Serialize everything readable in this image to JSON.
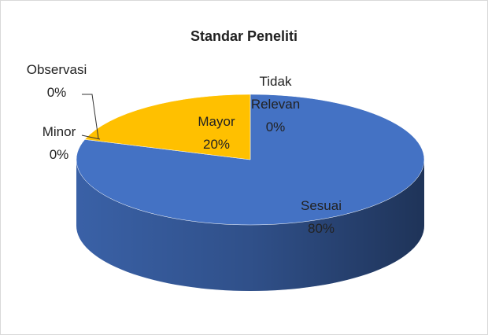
{
  "chart_data": {
    "type": "pie3d",
    "title": "Standar Peneliti",
    "categories": [
      "Sesuai",
      "Mayor",
      "Minor",
      "Observasi",
      "Tidak Relevan"
    ],
    "values": [
      80,
      20,
      0,
      0,
      0
    ],
    "value_labels": [
      "80%",
      "20%",
      "0%",
      "0%",
      "0%"
    ],
    "colors": [
      "#4472c4",
      "#ffc000",
      "#a5a5a5",
      "#ed7d31",
      "#5b9bd5"
    ]
  }
}
